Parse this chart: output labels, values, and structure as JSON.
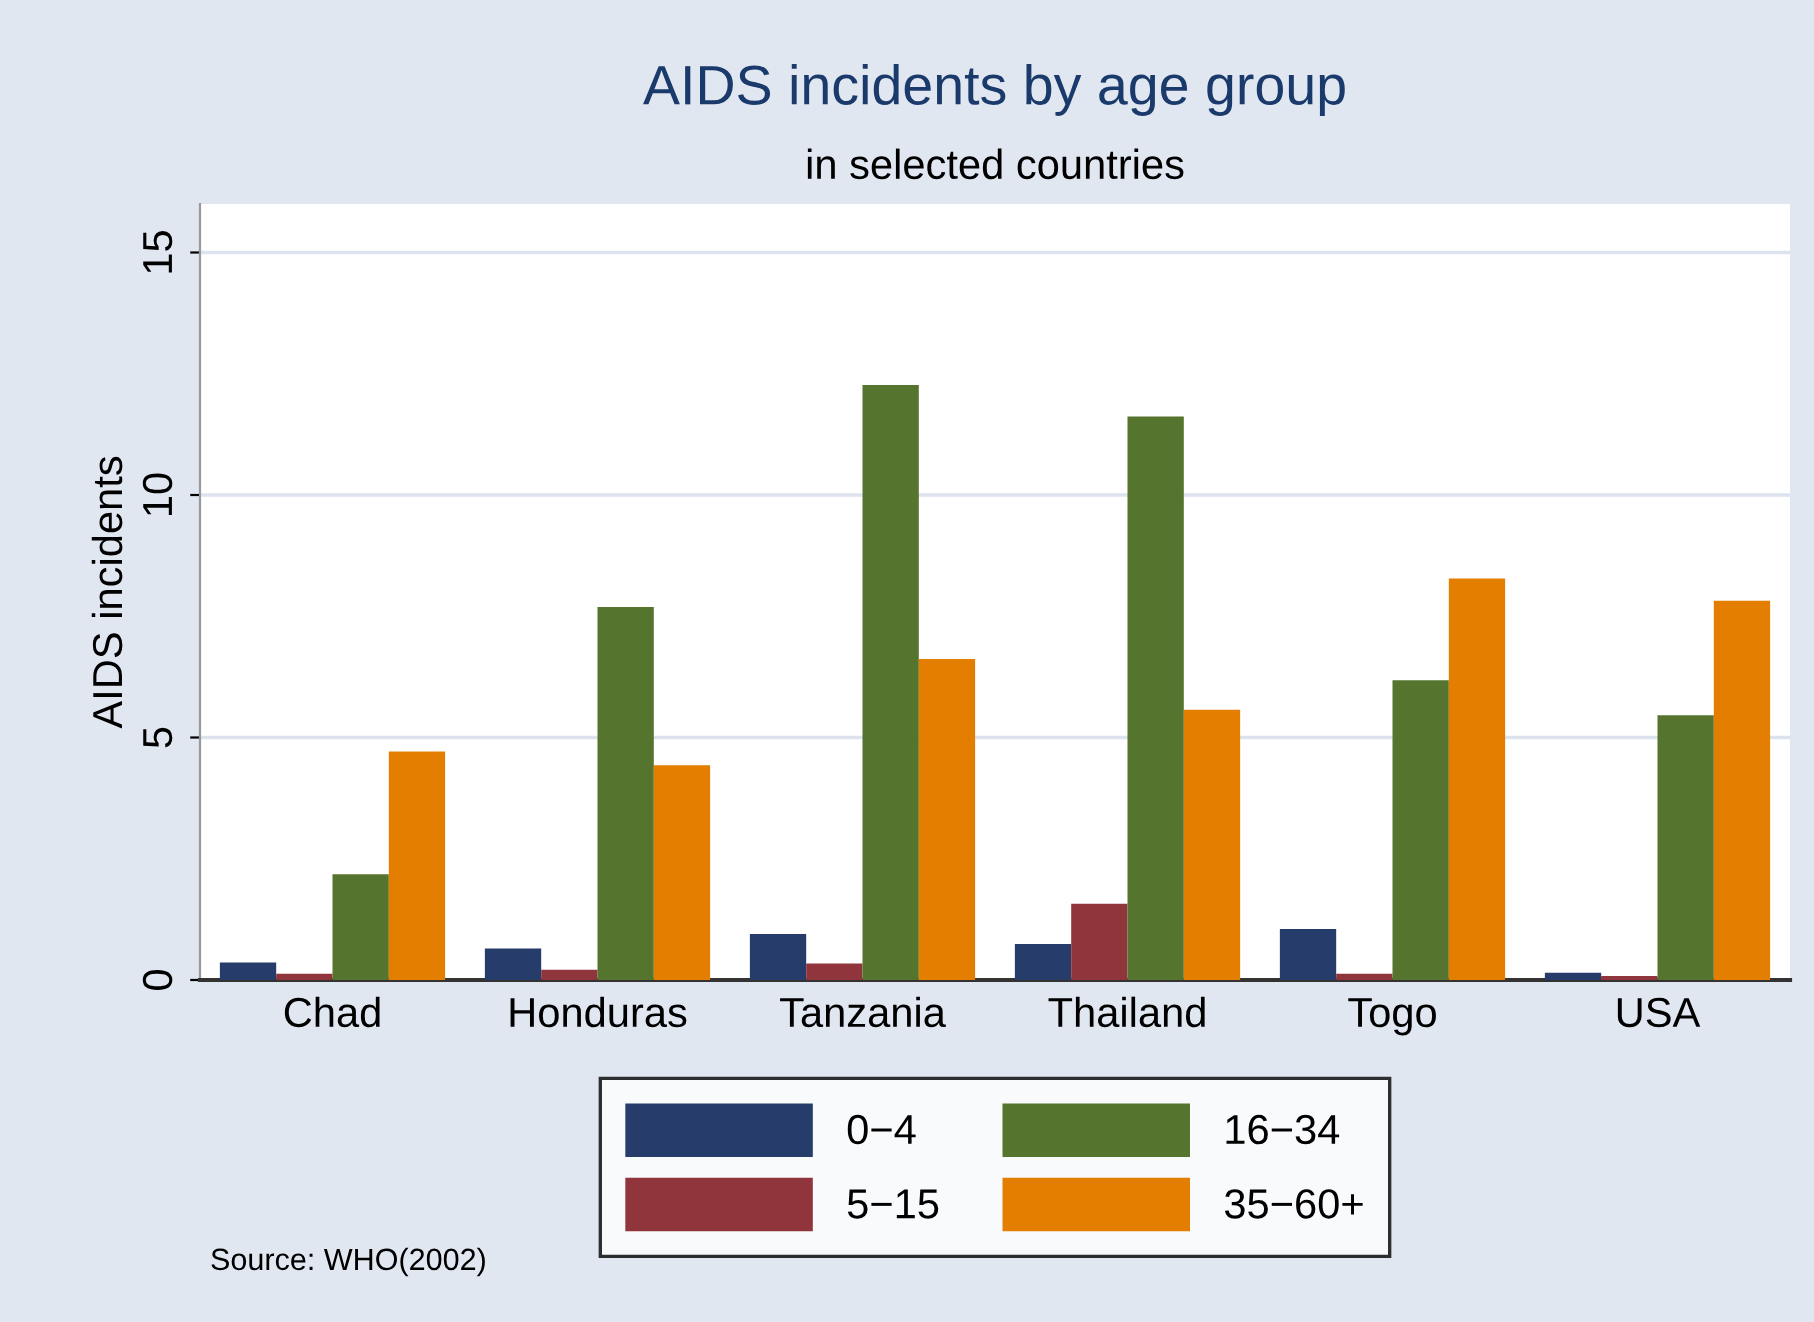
{
  "chart_data": {
    "type": "bar",
    "title": "AIDS incidents by age group",
    "subtitle": "in selected countries",
    "ylabel": "AIDS incidents",
    "categories": [
      "Chad",
      "Honduras",
      "Tanzania",
      "Thailand",
      "Togo",
      "USA"
    ],
    "series": [
      {
        "name": "0−4",
        "color": "#263d6b",
        "values": [
          0.36,
          0.65,
          0.95,
          0.74,
          1.05,
          0.15
        ]
      },
      {
        "name": "5−15",
        "color": "#90353b",
        "values": [
          0.13,
          0.21,
          0.34,
          1.57,
          0.13,
          0.08
        ]
      },
      {
        "name": "16−34",
        "color": "#55752f",
        "values": [
          2.18,
          7.69,
          12.27,
          11.62,
          6.18,
          5.46
        ]
      },
      {
        "name": "35−60+",
        "color": "#e37e00",
        "values": [
          4.71,
          4.43,
          6.62,
          5.57,
          8.28,
          7.82
        ]
      }
    ],
    "ylim": [
      0,
      16
    ],
    "yticks": [
      0,
      5,
      10,
      15
    ],
    "grid": "y",
    "legend": "bottom",
    "annotations": [
      "Source: WHO(2002)"
    ]
  }
}
